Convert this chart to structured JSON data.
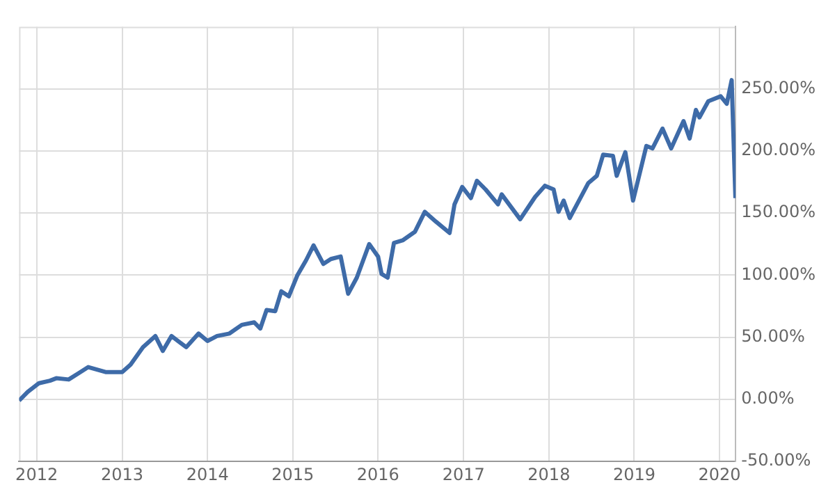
{
  "chart_data": {
    "type": "line",
    "x": [
      "2011-10-18",
      "2011-11-24",
      "2012-01-11",
      "2012-02-27",
      "2012-03-25",
      "2012-05-17",
      "2012-06-28",
      "2012-08-09",
      "2012-10-22",
      "2013-01-01",
      "2013-02-06",
      "2013-03-31",
      "2013-05-23",
      "2013-06-24",
      "2013-07-31",
      "2013-10-02",
      "2013-11-24",
      "2014-01-01",
      "2014-02-11",
      "2014-04-05",
      "2014-05-28",
      "2014-07-20",
      "2014-08-15",
      "2014-09-11",
      "2014-10-18",
      "2014-11-13",
      "2014-12-15",
      "2015-01-21",
      "2015-02-27",
      "2015-03-31",
      "2015-05-12",
      "2015-06-13",
      "2015-07-25",
      "2015-08-26",
      "2015-10-02",
      "2015-11-24",
      "2016-01-01",
      "2016-01-16",
      "2016-02-11",
      "2016-03-09",
      "2016-04-15",
      "2016-06-07",
      "2016-07-19",
      "2016-09-05",
      "2016-11-02",
      "2016-11-23",
      "2016-12-26",
      "2017-02-01",
      "2017-02-27",
      "2017-04-05",
      "2017-05-28",
      "2017-06-13",
      "2017-08-31",
      "2017-11-03",
      "2017-12-15",
      "2018-01-21",
      "2018-02-11",
      "2018-03-05",
      "2018-03-31",
      "2018-06-18",
      "2018-07-25",
      "2018-08-21",
      "2018-10-02",
      "2018-10-18",
      "2018-11-24",
      "2018-12-27",
      "2019-02-22",
      "2019-03-20",
      "2019-05-02",
      "2019-06-08",
      "2019-07-31",
      "2019-08-26",
      "2019-09-22",
      "2019-10-07",
      "2019-11-14",
      "2020-01-06",
      "2020-02-01",
      "2020-02-22",
      "2020-02-28",
      "2020-03-09"
    ],
    "series": [
      {
        "color": "#3e6ba8",
        "values": [
          -1,
          6,
          13,
          15,
          17,
          16,
          21,
          26,
          22,
          22,
          28,
          42,
          51,
          39,
          51,
          42,
          53,
          47,
          51,
          53,
          60,
          62,
          57,
          72,
          71,
          87,
          83,
          100,
          112,
          124,
          109,
          113,
          115,
          85,
          98,
          125,
          115,
          101,
          98,
          126,
          128,
          135,
          151,
          143,
          134,
          157,
          171,
          162,
          176,
          169,
          157,
          165,
          145,
          163,
          172,
          169,
          151,
          160,
          146,
          174,
          180,
          197,
          196,
          180,
          199,
          160,
          204,
          202,
          218,
          202,
          224,
          210,
          233,
          227,
          240,
          244,
          238,
          257,
          221,
          162
        ]
      }
    ],
    "xlim": [
      "2011-10-18",
      "2020-03-10"
    ],
    "ylim": [
      -50,
      300
    ],
    "xticks": [
      "2012",
      "2013",
      "2014",
      "2015",
      "2016",
      "2017",
      "2018",
      "2019",
      "2020"
    ],
    "yticks": [
      {
        "value": -50,
        "label": "-50.00%"
      },
      {
        "value": 0,
        "label": "0.00%"
      },
      {
        "value": 50,
        "label": "50.00%"
      },
      {
        "value": 100,
        "label": "100.00%"
      },
      {
        "value": 150,
        "label": "150.00%"
      },
      {
        "value": 200,
        "label": "200.00%"
      },
      {
        "value": 250,
        "label": "250.00%"
      }
    ],
    "grid": true,
    "legend": false,
    "marker": "none",
    "line_style": "solid"
  }
}
